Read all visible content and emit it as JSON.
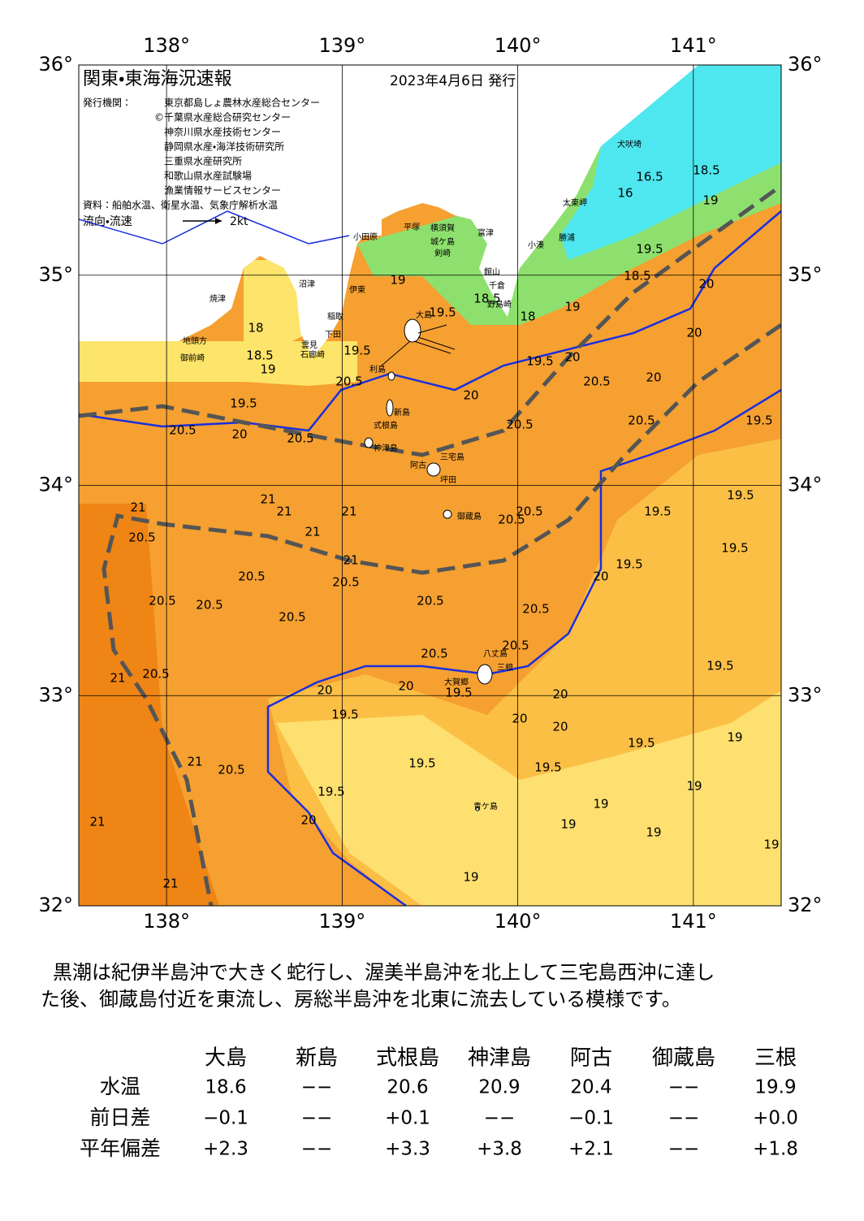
{
  "map": {
    "title": "関東・東海海況速報",
    "date": "2023年4月6日 発行",
    "issuer_label": "発行機関：",
    "issuers": [
      "東京都島しょ農林水産総合センター",
      "©千葉県水産総合研究センター",
      "神奈川県水産技術センター",
      "静岡県水産・海洋技術研究所",
      "三重県水産研究所",
      "和歌山県水産試験場",
      "漁業情報サービスセンター"
    ],
    "source": "資料：船舶水温、衛星水温、気象庁解析水温",
    "flow_label": "流向・流速",
    "flow_scale": "2kt",
    "xlim": [
      137.5,
      141.5
    ],
    "ylim": [
      32,
      36
    ],
    "xticks": [
      {
        "value": 138,
        "label": "138°"
      },
      {
        "value": 139,
        "label": "139°"
      },
      {
        "value": 140,
        "label": "140°"
      },
      {
        "value": 141,
        "label": "141°"
      }
    ],
    "yticks": [
      {
        "value": 32,
        "label": "32°"
      },
      {
        "value": 33,
        "label": "33°"
      },
      {
        "value": 34,
        "label": "34°"
      },
      {
        "value": 35,
        "label": "35°"
      },
      {
        "value": 36,
        "label": "36°"
      }
    ],
    "places": [
      "大島",
      "利島",
      "新島",
      "式根島",
      "神津島",
      "三宅島",
      "阿古",
      "坪田",
      "御蔵島",
      "八丈島",
      "三根",
      "大賀郷",
      "青ケ島",
      "小田原",
      "平塚",
      "横須賀",
      "城ケ島",
      "剣崎",
      "富津",
      "館山",
      "千倉",
      "野島崎",
      "小湊",
      "勝浦",
      "太東岬",
      "犬吠埼",
      "沼津",
      "伊東",
      "稲取",
      "下田",
      "雲見",
      "石廊崎",
      "焼津",
      "地頭方",
      "御前崎"
    ],
    "contour_labels": [
      19.5,
      20.5,
      19.5,
      20.5,
      20,
      20.5,
      20,
      20.5,
      20.5,
      20.5,
      20,
      19.5,
      20,
      19.5,
      19,
      18,
      18.5,
      19.5,
      18.5,
      18,
      19,
      16,
      16.5,
      18.5,
      19,
      18.5,
      19.5,
      19,
      21,
      20.5,
      21,
      21,
      21,
      21,
      21,
      20.5,
      20.5,
      20.5,
      20.5,
      20.5,
      20.5,
      20.5,
      20.5,
      20.5,
      19.5,
      20,
      19.5,
      19.5,
      19.5,
      20.5,
      20.5,
      20,
      19.5,
      20,
      19.5,
      20,
      20,
      19.5,
      19.5,
      19.5,
      19.5,
      19.5,
      20.5,
      21,
      21,
      20.5,
      21,
      21,
      20,
      19,
      19,
      19,
      19,
      19,
      19,
      19,
      20,
      20,
      20
    ]
  },
  "comment": [
    "黒潮は紀伊半島沖で大きく蛇行し、渥美半島沖を北上して三宅島西沖に達し",
    "た後、御蔵島付近を東流し、房総半島沖を北東に流去している模様です。"
  ],
  "table": {
    "columns": [
      "大島",
      "新島",
      "式根島",
      "神津島",
      "阿古",
      "御蔵島",
      "三根"
    ],
    "rows": [
      {
        "label": "水温",
        "cells": [
          "18.6",
          "−−",
          "20.6",
          "20.9",
          "20.4",
          "−−",
          "19.9"
        ]
      },
      {
        "label": "前日差",
        "cells": [
          "−0.1",
          "−−",
          "+0.1",
          "−−",
          "−0.1",
          "−−",
          "+0.0"
        ]
      },
      {
        "label": "平年偏差",
        "cells": [
          "+2.3",
          "−−",
          "+3.3",
          "+3.8",
          "+2.1",
          "−−",
          "+1.8"
        ]
      }
    ]
  }
}
